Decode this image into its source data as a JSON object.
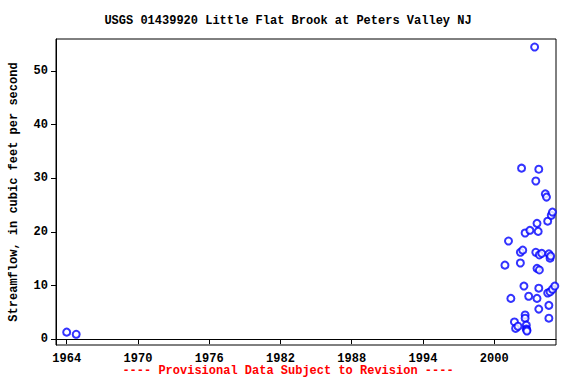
{
  "chart_data": {
    "type": "scatter",
    "title": "USGS 01439920 Little Flat Brook at Peters Valley NJ",
    "y_label": "Streamflow, in cubic feet per second",
    "annotation": "---- Provisional Data Subject to Revision ----",
    "color": "#0000ff",
    "marker": "circle_open",
    "grid": false,
    "xlim": [
      1963.1,
      2005.2
    ],
    "xticks": [
      1964,
      1970,
      1976,
      1982,
      1988,
      1994,
      2000
    ],
    "ylim": [
      -1.1,
      56
    ],
    "yticks": [
      0,
      10,
      20,
      30,
      40,
      50
    ],
    "x": [
      1964.0,
      1964.8,
      2000.9,
      2001.2,
      2001.4,
      2001.7,
      2001.8,
      2002.0,
      2002.2,
      2002.4,
      2002.3,
      2002.2,
      2002.5,
      2002.6,
      2002.6,
      2002.6,
      2002.7,
      2002.7,
      2002.75,
      2002.75,
      2002.9,
      2003.0,
      2003.4,
      2003.5,
      2003.6,
      2003.7,
      2003.5,
      2003.8,
      2003.6,
      2003.8,
      2003.75,
      2003.6,
      2003.75,
      2003.75,
      2004.0,
      2004.3,
      2004.4,
      2004.5,
      2004.6,
      2004.7,
      2004.5,
      2004.7,
      2004.6,
      2004.6,
      2004.8,
      2004.9,
      2004.75,
      2004.9,
      2005.1
    ],
    "values": [
      1.3,
      0.9,
      13.8,
      18.3,
      7.6,
      3.2,
      2.0,
      2.4,
      16.2,
      16.6,
      31.9,
      14.2,
      9.9,
      19.8,
      4.5,
      3.9,
      2.6,
      1.9,
      1.7,
      1.5,
      8.0,
      20.3,
      54.5,
      29.5,
      21.6,
      20.1,
      16.2,
      15.7,
      13.2,
      12.9,
      31.7,
      7.6,
      9.5,
      5.6,
      16.0,
      27.1,
      26.5,
      22.0,
      15.9,
      15.1,
      8.6,
      8.8,
      6.3,
      3.9,
      23.1,
      23.7,
      15.5,
      9.3,
      9.9
    ]
  }
}
